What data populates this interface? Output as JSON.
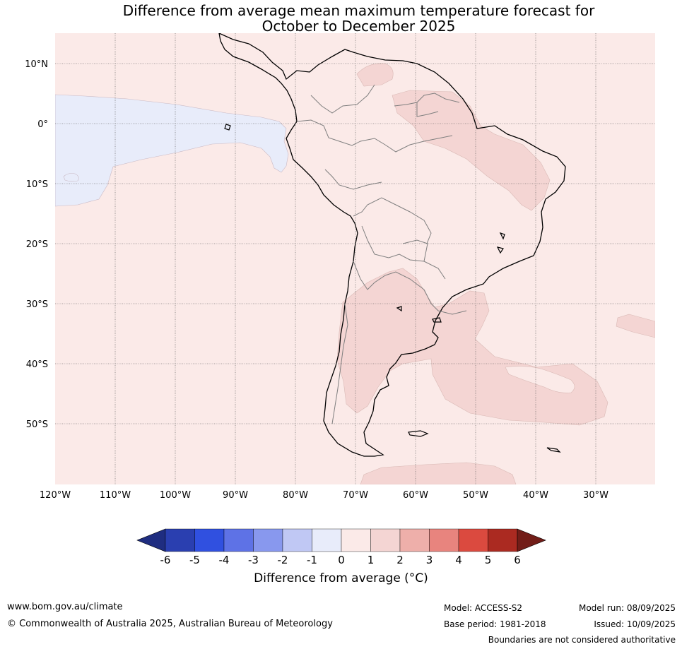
{
  "title": {
    "line1": "Difference from average mean maximum temperature forecast for",
    "line2": "October to December 2025"
  },
  "map": {
    "lat_labels": [
      "10°N",
      "0°",
      "10°S",
      "20°S",
      "30°S",
      "40°S",
      "50°S"
    ],
    "lon_labels": [
      "120°W",
      "110°W",
      "100°W",
      "90°W",
      "80°W",
      "70°W",
      "60°W",
      "50°W",
      "40°W",
      "30°W"
    ],
    "colors": {
      "background_0_1": "#fbeae8",
      "cool_minus1_0": "#e8ecfa",
      "warm_1_2": "#f4d5d3",
      "coast": "#000000",
      "borders": "#7f7f7f"
    }
  },
  "colorbar": {
    "tick_labels": [
      "-6",
      "-5",
      "-4",
      "-3",
      "-2",
      "-1",
      "0",
      "1",
      "2",
      "3",
      "4",
      "5",
      "6"
    ],
    "colors": [
      "#1f2d80",
      "#2a3fb0",
      "#3050e0",
      "#5e72e6",
      "#8898ee",
      "#c0c8f4",
      "#e8ecfa",
      "#fbeae8",
      "#f4d5d3",
      "#eeafaa",
      "#e8847e",
      "#db4a3f",
      "#ab2a21",
      "#721d18"
    ],
    "title": "Difference from average (°C)"
  },
  "footer": {
    "url": "www.bom.gov.au/climate",
    "copyright": "© Commonwealth of Australia 2025, Australian Bureau of Meteorology",
    "model": "Model: ACCESS-S2",
    "base_period": "Base period: 1981-2018",
    "model_run": "Model run: 08/09/2025",
    "issued": "Issued: 10/09/2025",
    "boundaries": "Boundaries are not considered authoritative"
  }
}
